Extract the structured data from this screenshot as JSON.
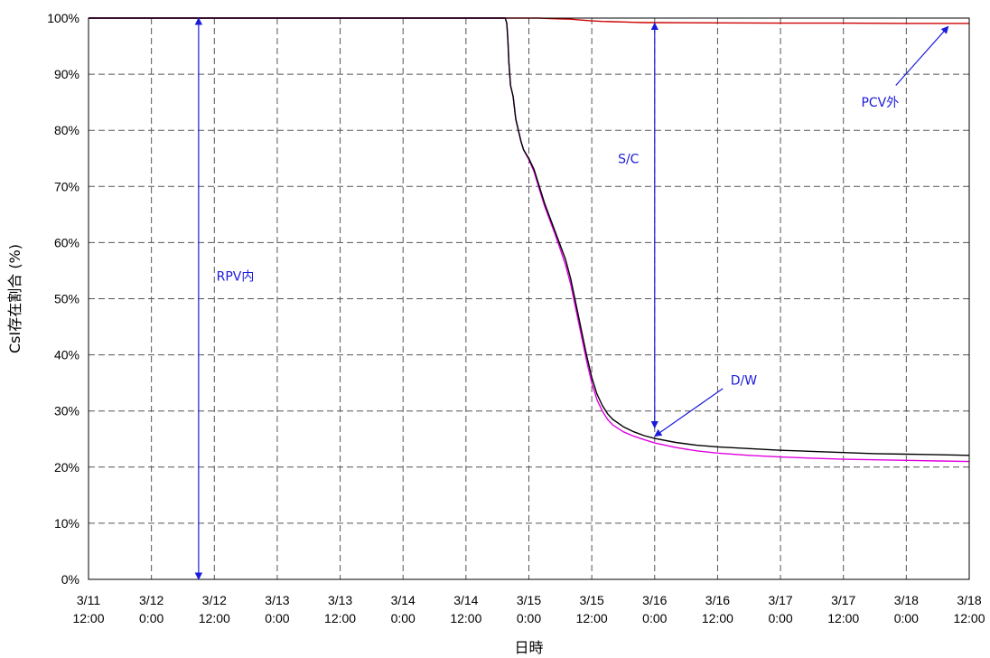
{
  "chart_data": {
    "type": "line",
    "ylabel": "CsI存在割合 (%)",
    "xlabel": "日時",
    "x_unit": "hours",
    "xlim": [
      0,
      168
    ],
    "ylim": [
      0,
      100
    ],
    "x_ticks": [
      {
        "v": 0,
        "line1": "3/11",
        "line2": "12:00"
      },
      {
        "v": 12,
        "line1": "3/12",
        "line2": "0:00"
      },
      {
        "v": 24,
        "line1": "3/12",
        "line2": "12:00"
      },
      {
        "v": 36,
        "line1": "3/13",
        "line2": "0:00"
      },
      {
        "v": 48,
        "line1": "3/13",
        "line2": "12:00"
      },
      {
        "v": 60,
        "line1": "3/14",
        "line2": "0:00"
      },
      {
        "v": 72,
        "line1": "3/14",
        "line2": "12:00"
      },
      {
        "v": 84,
        "line1": "3/15",
        "line2": "0:00"
      },
      {
        "v": 96,
        "line1": "3/15",
        "line2": "12:00"
      },
      {
        "v": 108,
        "line1": "3/16",
        "line2": "0:00"
      },
      {
        "v": 120,
        "line1": "3/16",
        "line2": "12:00"
      },
      {
        "v": 132,
        "line1": "3/17",
        "line2": "0:00"
      },
      {
        "v": 144,
        "line1": "3/17",
        "line2": "12:00"
      },
      {
        "v": 156,
        "line1": "3/18",
        "line2": "0:00"
      },
      {
        "v": 168,
        "line1": "3/18",
        "line2": "12:00"
      }
    ],
    "y_ticks": [
      {
        "v": 0,
        "label": "0%"
      },
      {
        "v": 10,
        "label": "10%"
      },
      {
        "v": 20,
        "label": "20%"
      },
      {
        "v": 30,
        "label": "30%"
      },
      {
        "v": 40,
        "label": "40%"
      },
      {
        "v": 50,
        "label": "50%"
      },
      {
        "v": 60,
        "label": "60%"
      },
      {
        "v": 70,
        "label": "70%"
      },
      {
        "v": 80,
        "label": "80%"
      },
      {
        "v": 90,
        "label": "90%"
      },
      {
        "v": 100,
        "label": "100%"
      }
    ],
    "grid": true,
    "series": [
      {
        "color": "#cc0000",
        "x": [
          0,
          86,
          88,
          90,
          92,
          94,
          96,
          98,
          100,
          102,
          104,
          106,
          108,
          120,
          132,
          144,
          156,
          168
        ],
        "y": [
          100,
          100,
          99.9,
          99.85,
          99.8,
          99.65,
          99.5,
          99.4,
          99.35,
          99.3,
          99.25,
          99.2,
          99.2,
          99.15,
          99.1,
          99.1,
          99.05,
          99.05
        ]
      },
      {
        "color": "#000000",
        "x": [
          0,
          79.5,
          79.8,
          80,
          80.2,
          80.5,
          81,
          81.5,
          82,
          82.5,
          83,
          84,
          85,
          86,
          87,
          88,
          89,
          90,
          91,
          92,
          93,
          94,
          95,
          96,
          97,
          98,
          99,
          100,
          102,
          104,
          106,
          108,
          112,
          116,
          120,
          126,
          132,
          138,
          144,
          150,
          156,
          162,
          168
        ],
        "y": [
          100,
          100,
          99,
          96,
          92,
          88,
          86,
          82,
          80,
          78,
          76.5,
          75,
          73,
          70,
          67,
          64.5,
          62,
          59.5,
          57,
          53.5,
          49,
          44.5,
          40,
          36,
          33,
          31,
          29.5,
          28.5,
          27.2,
          26.3,
          25.6,
          25.1,
          24.4,
          23.9,
          23.6,
          23.3,
          23.0,
          22.8,
          22.6,
          22.4,
          22.3,
          22.2,
          22.1
        ]
      },
      {
        "color": "#e000e0",
        "x": [
          0,
          79.5,
          79.8,
          80,
          80.2,
          80.5,
          81,
          81.5,
          82,
          82.5,
          83,
          84,
          85,
          86,
          87,
          88,
          89,
          90,
          91,
          92,
          93,
          94,
          95,
          96,
          97,
          98,
          99,
          100,
          102,
          104,
          106,
          108,
          112,
          116,
          120,
          126,
          132,
          138,
          144,
          150,
          156,
          162,
          168
        ],
        "y": [
          100,
          100,
          99,
          96,
          92,
          88,
          86,
          82,
          80,
          78,
          76.5,
          74.8,
          72.6,
          69.5,
          66.5,
          64,
          61.5,
          58.8,
          56,
          52.5,
          48,
          43.5,
          39,
          35,
          32,
          30,
          28.5,
          27.5,
          26.3,
          25.5,
          24.9,
          24.3,
          23.5,
          22.9,
          22.5,
          22.1,
          21.8,
          21.6,
          21.4,
          21.3,
          21.2,
          21.1,
          21.0
        ]
      }
    ],
    "annotations": [
      {
        "text": "RPV内",
        "x": 28,
        "y": 54
      },
      {
        "text": "S/C",
        "x": 103,
        "y": 75
      },
      {
        "text": "D/W",
        "x": 125,
        "y": 35.5
      },
      {
        "text": "PCV外",
        "x": 151,
        "y": 85
      }
    ],
    "range_arrows": [
      {
        "x": 21,
        "y_from": 0,
        "y_to": 100
      },
      {
        "x": 108,
        "y_from": 27,
        "y_to": 99.1
      }
    ],
    "pointer_arrows": [
      {
        "from": [
          121,
          34
        ],
        "to": [
          108,
          25.5
        ]
      },
      {
        "from": [
          154,
          88
        ],
        "to": [
          164,
          98.5
        ]
      }
    ],
    "annotation_color": "#1a1adb"
  }
}
